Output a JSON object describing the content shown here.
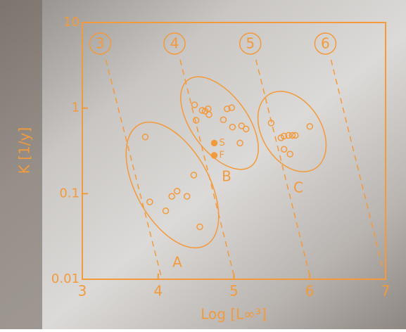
{
  "chart_data": {
    "type": "scatter",
    "x_label": "Log [L∞³]",
    "y_label": "K [1/y]",
    "xlim": [
      3,
      7
    ],
    "xticks": [
      3,
      4,
      5,
      6,
      7
    ],
    "ylim": [
      0.01,
      10
    ],
    "yticks": [
      0.01,
      0.1,
      1,
      10
    ],
    "y_log": true,
    "color": "#f39a3c",
    "guide_lines": [
      {
        "label": "3",
        "x": [
          3.31,
          4.05
        ],
        "y": [
          3.67,
          0.01
        ]
      },
      {
        "label": "4",
        "x": [
          4.29,
          5.0
        ],
        "y": [
          3.67,
          0.011
        ]
      },
      {
        "label": "5",
        "x": [
          5.29,
          6.0
        ],
        "y": [
          3.67,
          0.011
        ]
      },
      {
        "label": "6",
        "x": [
          6.28,
          6.97
        ],
        "y": [
          3.67,
          0.0126
        ]
      }
    ],
    "series": [
      {
        "name": "A",
        "marker": "open",
        "x": [
          3.83,
          3.89,
          4.1,
          4.18,
          4.25,
          4.38,
          4.47,
          4.55
        ],
        "values": [
          0.46,
          0.08,
          0.063,
          0.093,
          0.107,
          0.093,
          0.165,
          0.041
        ]
      },
      {
        "name": "B",
        "marker": "open",
        "x": [
          4.48,
          4.5,
          4.58,
          4.62,
          4.66,
          4.67,
          4.86,
          4.91,
          4.97,
          4.98,
          5.08,
          5.1,
          5.16
        ],
        "values": [
          1.09,
          0.72,
          0.94,
          0.92,
          0.98,
          0.84,
          0.73,
          0.98,
          1.01,
          0.6,
          0.39,
          0.62,
          0.57
        ]
      },
      {
        "name": "C",
        "marker": "open",
        "x": [
          5.49,
          5.62,
          5.66,
          5.72,
          5.77,
          5.81,
          5.66,
          5.74,
          6.0
        ],
        "values": [
          0.67,
          0.45,
          0.47,
          0.48,
          0.48,
          0.48,
          0.33,
          0.29,
          0.61
        ]
      },
      {
        "name": "S",
        "marker": "filled",
        "x": [
          4.74
        ],
        "values": [
          0.39
        ]
      },
      {
        "name": "F",
        "marker": "filled",
        "x": [
          4.74
        ],
        "values": [
          0.28
        ]
      }
    ]
  }
}
